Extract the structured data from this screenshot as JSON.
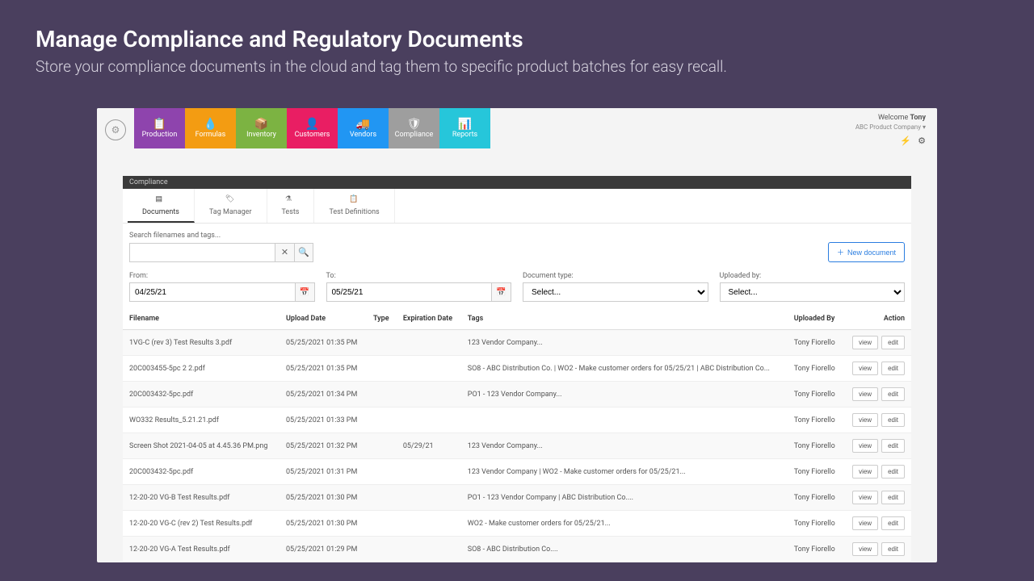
{
  "hero": {
    "title": "Manage Compliance and Regulatory Documents",
    "subtitle": "Store your compliance documents in the cloud and tag them to specific product batches for easy recall."
  },
  "topbar": {
    "welcome_prefix": "Welcome ",
    "welcome_name": "Tony",
    "company": "ABC Product Company",
    "nav": [
      {
        "label": "Production",
        "color": "#8e44ad"
      },
      {
        "label": "Formulas",
        "color": "#f39c12"
      },
      {
        "label": "Inventory",
        "color": "#7cb342"
      },
      {
        "label": "Customers",
        "color": "#e91e63"
      },
      {
        "label": "Vendors",
        "color": "#2196f3"
      },
      {
        "label": "Compliance",
        "color": "#9e9e9e"
      },
      {
        "label": "Reports",
        "color": "#26c6da"
      }
    ]
  },
  "section_title": "Compliance",
  "sub_tabs": [
    {
      "label": "Documents",
      "active": true
    },
    {
      "label": "Tag Manager",
      "active": false
    },
    {
      "label": "Tests",
      "active": false
    },
    {
      "label": "Test Definitions",
      "active": false
    }
  ],
  "search": {
    "label": "Search filenames and tags...",
    "value": ""
  },
  "new_doc_label": "New document",
  "filters": {
    "from_label": "From:",
    "from_value": "04/25/21",
    "to_label": "To:",
    "to_value": "05/25/21",
    "doc_type_label": "Document type:",
    "doc_type_value": "Select...",
    "uploaded_by_label": "Uploaded by:",
    "uploaded_by_value": "Select..."
  },
  "table": {
    "columns": [
      "Filename",
      "Upload Date",
      "Type",
      "Expiration Date",
      "Tags",
      "Uploaded By",
      "Action"
    ],
    "view_label": "view",
    "edit_label": "edit",
    "rows": [
      {
        "filename": "1VG-C (rev 3) Test Results 3.pdf",
        "date": "05/25/2021 01:35 PM",
        "type": "",
        "exp": "",
        "tags": "123 Vendor Company...",
        "by": "Tony Fiorello"
      },
      {
        "filename": "20C003455-5pc 2 2.pdf",
        "date": "05/25/2021 01:35 PM",
        "type": "",
        "exp": "",
        "tags": "SO8 - ABC Distribution Co. | WO2 - Make customer orders for 05/25/21 | ABC Distribution Co...",
        "by": "Tony Fiorello"
      },
      {
        "filename": "20C003432-5pc.pdf",
        "date": "05/25/2021 01:34 PM",
        "type": "",
        "exp": "",
        "tags": "PO1 - 123 Vendor Company...",
        "by": "Tony Fiorello"
      },
      {
        "filename": "WO332 Results_5.21.21.pdf",
        "date": "05/25/2021 01:33 PM",
        "type": "",
        "exp": "",
        "tags": "",
        "by": "Tony Fiorello"
      },
      {
        "filename": "Screen Shot 2021-04-05 at 4.45.36 PM.png",
        "date": "05/25/2021 01:32 PM",
        "type": "",
        "exp": "05/29/21",
        "tags": "123 Vendor Company...",
        "by": "Tony Fiorello"
      },
      {
        "filename": "20C003432-5pc.pdf",
        "date": "05/25/2021 01:31 PM",
        "type": "",
        "exp": "",
        "tags": "123 Vendor Company | WO2 - Make customer orders for 05/25/21...",
        "by": "Tony Fiorello"
      },
      {
        "filename": "12-20-20 VG-B Test Results.pdf",
        "date": "05/25/2021 01:30 PM",
        "type": "",
        "exp": "",
        "tags": "PO1 - 123 Vendor Company | ABC Distribution Co....",
        "by": "Tony Fiorello"
      },
      {
        "filename": "12-20-20 VG-C (rev 2) Test Results.pdf",
        "date": "05/25/2021 01:30 PM",
        "type": "",
        "exp": "",
        "tags": "WO2 - Make customer orders for 05/25/21...",
        "by": "Tony Fiorello"
      },
      {
        "filename": "12-20-20 VG-A Test Results.pdf",
        "date": "05/25/2021 01:29 PM",
        "type": "",
        "exp": "",
        "tags": "SO8 - ABC Distribution Co....",
        "by": "Tony Fiorello"
      }
    ]
  }
}
